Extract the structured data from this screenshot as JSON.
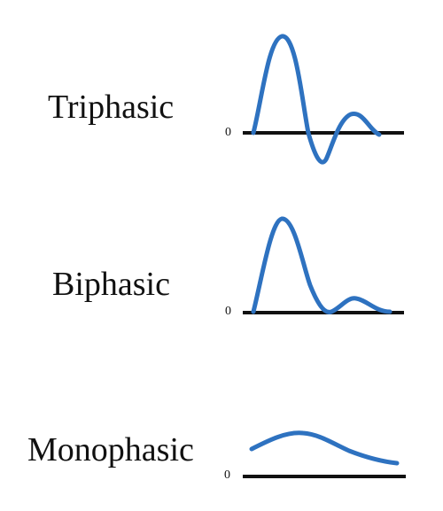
{
  "colors": {
    "waveform": "#2e72c0",
    "baseline": "#111111",
    "text": "#111111"
  },
  "panels": [
    {
      "label": "Triphasic",
      "zero_label": "0"
    },
    {
      "label": "Biphasic",
      "zero_label": "0"
    },
    {
      "label": "Monophasic",
      "zero_label": "0"
    }
  ]
}
